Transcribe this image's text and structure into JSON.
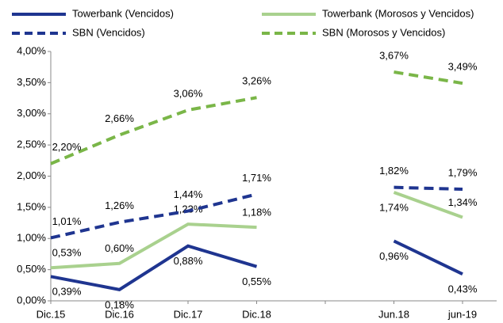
{
  "chart_data": {
    "type": "line",
    "categories": [
      "Dic.15",
      "Dic.16",
      "Dic.17",
      "Dic.18",
      null,
      "Jun.18",
      "jun-19"
    ],
    "ylim": [
      0,
      4
    ],
    "yticks": [
      {
        "value": 0,
        "label": "0,00%"
      },
      {
        "value": 0.5,
        "label": "0,50%"
      },
      {
        "value": 1,
        "label": "1,00%"
      },
      {
        "value": 1.5,
        "label": "1,50%"
      },
      {
        "value": 2,
        "label": "2,00%"
      },
      {
        "value": 2.5,
        "label": "2,50%"
      },
      {
        "value": 3,
        "label": "3,00%"
      },
      {
        "value": 3.5,
        "label": "3,50%"
      },
      {
        "value": 4,
        "label": "4,00%"
      }
    ],
    "series": [
      {
        "name": "Towerbank (Vencidos)",
        "color": "#1f3590",
        "dash": false,
        "values": [
          0.39,
          0.18,
          0.88,
          0.55,
          null,
          0.96,
          0.43
        ],
        "value_labels": [
          "0,39%",
          "0,18%",
          "0,88%",
          "0,55%",
          null,
          "0,96%",
          "0,43%"
        ]
      },
      {
        "name": "Towerbank (Morosos y Vencidos)",
        "color": "#a9d18e",
        "dash": false,
        "values": [
          0.53,
          0.6,
          1.23,
          1.18,
          null,
          1.74,
          1.34
        ],
        "value_labels": [
          "0,53%",
          "0,60%",
          "1,23%",
          "1,18%",
          null,
          "1,74%",
          "1,34%"
        ]
      },
      {
        "name": "SBN (Vencidos)",
        "color": "#1f3590",
        "dash": true,
        "values": [
          1.01,
          1.26,
          1.44,
          1.71,
          null,
          1.82,
          1.79
        ],
        "value_labels": [
          "1,01%",
          "1,26%",
          "1,44%",
          "1,71%",
          null,
          "1,82%",
          "1,79%"
        ]
      },
      {
        "name": "SBN (Morosos y Vencidos)",
        "color": "#7ab648",
        "dash": true,
        "values": [
          2.2,
          2.66,
          3.06,
          3.26,
          null,
          3.67,
          3.49
        ],
        "value_labels": [
          "2,20%",
          "2,66%",
          "3,06%",
          "3,26%",
          null,
          "3,67%",
          "3,49%"
        ]
      }
    ]
  }
}
